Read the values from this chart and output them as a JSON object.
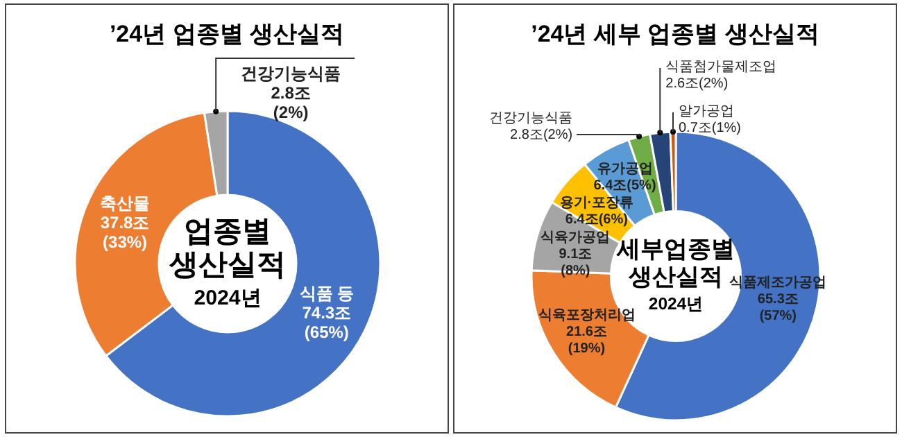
{
  "chart_data": [
    {
      "type": "donut",
      "title": "’24년 업종별 생산실적",
      "categories": [
        "식품 등",
        "축산물",
        "건강기능식품"
      ],
      "values": [
        74.3,
        37.8,
        2.8
      ],
      "colors": [
        "#4472c4",
        "#ed7d31",
        "#a5a5a5"
      ],
      "value_labels": [
        "74.3조 (65%)",
        "37.8조 (33%)",
        "2.8조 (2%)"
      ],
      "annotations": [
        "업종별",
        "생산실적",
        "2024년"
      ]
    },
    {
      "type": "donut",
      "title": "’24년 세부 업종별 생산실적",
      "categories": [
        "식품제조가공업",
        "식육포장처리업",
        "식육가공업",
        "용기·포장류",
        "유가공업",
        "건강기능식품",
        "식품첨가물제조업",
        "알가공업"
      ],
      "values": [
        65.3,
        21.6,
        9.1,
        6.4,
        6.4,
        2.8,
        2.6,
        0.7
      ],
      "colors": [
        "#4472c4",
        "#ed7d31",
        "#a5a5a5",
        "#ffc000",
        "#5b9bd5",
        "#70ad47",
        "#264478",
        "#c55a11"
      ],
      "value_labels": [
        "65.3조 (57%)",
        "21.6조 (19%)",
        "9.1조 (8%)",
        "6.4조(6%)",
        "6.4조(5%)",
        "2.8조(2%)",
        "2.6조(2%)",
        "0.7조(1%)"
      ],
      "annotations": [
        "세부업종별",
        "생산실적",
        "2024년"
      ]
    }
  ]
}
